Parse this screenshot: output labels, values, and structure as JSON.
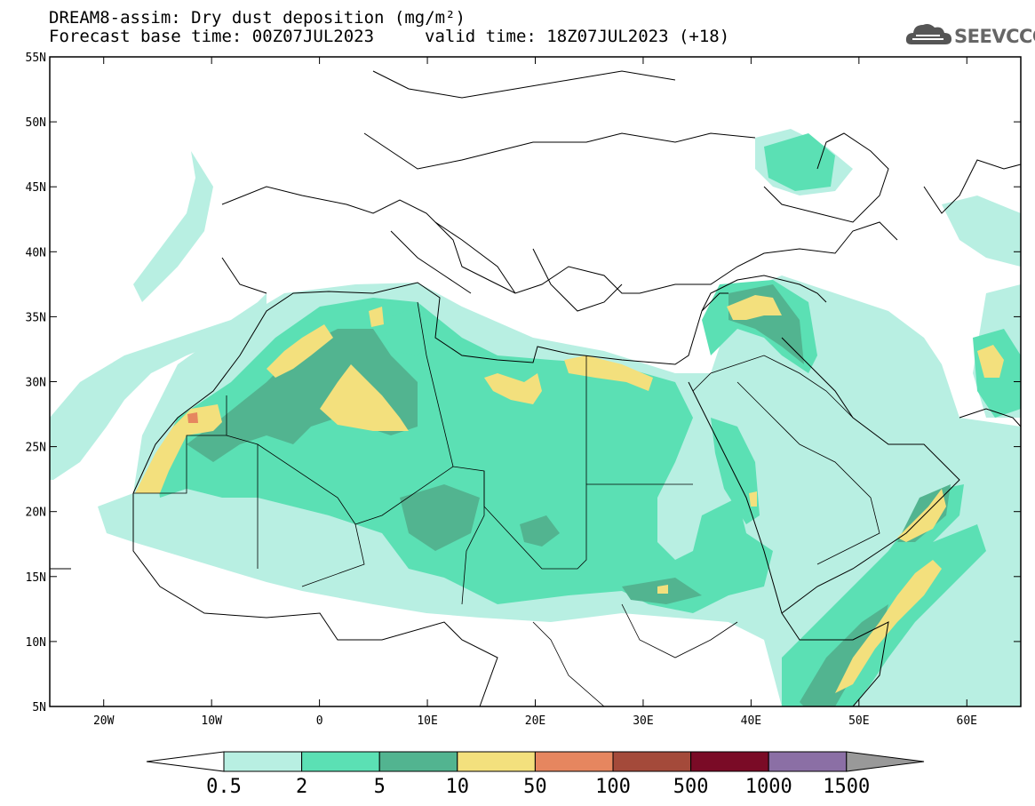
{
  "title": {
    "line1": "DREAM8-assim: Dry dust deposition (mg/m²)",
    "line2_left": "Forecast base time: 00Z07JUL2023",
    "line2_right": "valid time: 18Z07JUL2023 (+18)"
  },
  "logo": {
    "text": "SEEVCCC",
    "icon": "cloud-icon",
    "color": "#555555"
  },
  "map": {
    "lon_range": [
      -25,
      65
    ],
    "lat_range": [
      5,
      55
    ],
    "x_ticks": [
      "20W",
      "10W",
      "0",
      "10E",
      "20E",
      "30E",
      "40E",
      "50E",
      "60E"
    ],
    "y_ticks": [
      "55N",
      "50N",
      "45N",
      "40N",
      "35N",
      "30N",
      "25N",
      "20N",
      "15N",
      "10N",
      "5N"
    ],
    "colors": {
      "l1": "#b8efe2",
      "l2": "#5be0b4",
      "l3": "#52b490",
      "l4": "#f3e07d",
      "l5": "#e6865f",
      "l6": "#a44a3a",
      "l7": "#7a0b26",
      "l8": "#8b6fa5",
      "over": "#999999"
    }
  },
  "colorbar": {
    "labels": [
      "0.5",
      "2",
      "5",
      "10",
      "50",
      "100",
      "500",
      "1000",
      "1500"
    ],
    "colors": [
      "#b8efe2",
      "#5be0b4",
      "#52b490",
      "#f3e07d",
      "#e6865f",
      "#a44a3a",
      "#7a0b26",
      "#8b6fa5"
    ],
    "under_color": "#ffffff",
    "over_color": "#999999"
  }
}
